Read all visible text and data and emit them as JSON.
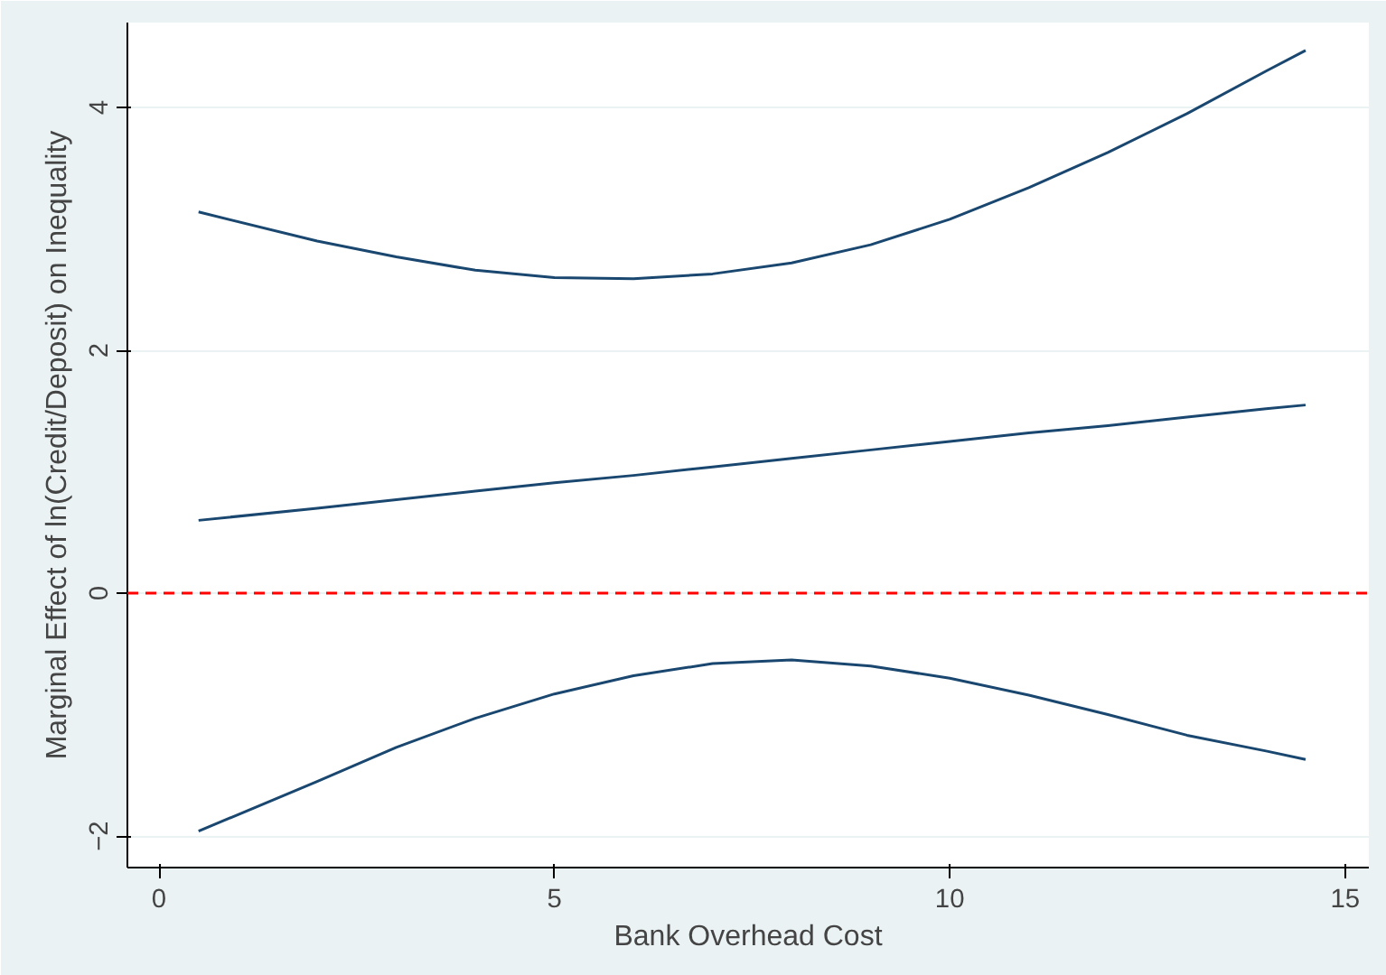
{
  "chart_data": {
    "type": "line",
    "xlabel": "Bank Overhead Cost",
    "ylabel": "Marginal Effect of ln(Credit/Deposit) on Inequality",
    "x": [
      0.5,
      2,
      3,
      4,
      5,
      6,
      7,
      8,
      9,
      10,
      11,
      12,
      13,
      14,
      14.5
    ],
    "series": [
      {
        "color": "#1a476f",
        "values": [
          3.14,
          2.9,
          2.77,
          2.66,
          2.6,
          2.59,
          2.63,
          2.72,
          2.87,
          3.08,
          3.34,
          3.63,
          3.95,
          4.3,
          4.47
        ]
      },
      {
        "color": "#1a476f",
        "values": [
          0.6,
          0.7,
          0.77,
          0.84,
          0.91,
          0.97,
          1.04,
          1.11,
          1.18,
          1.25,
          1.32,
          1.38,
          1.45,
          1.52,
          1.55
        ]
      },
      {
        "color": "#1a476f",
        "values": [
          -1.96,
          -1.55,
          -1.27,
          -1.03,
          -0.83,
          -0.68,
          -0.58,
          -0.55,
          -0.6,
          -0.7,
          -0.84,
          -1.0,
          -1.17,
          -1.3,
          -1.37
        ]
      }
    ],
    "xlim": [
      -0.4,
      15.3
    ],
    "ylim": [
      -2.26,
      4.7
    ],
    "xticks": [
      0,
      5,
      10,
      15
    ],
    "yticks": [
      -2,
      0,
      2,
      4
    ],
    "ref_lines": [
      {
        "axis": "y",
        "value": 0,
        "color": "#ff0000",
        "line_style": "dashed"
      }
    ],
    "grid": "y",
    "line_style": "solid"
  }
}
